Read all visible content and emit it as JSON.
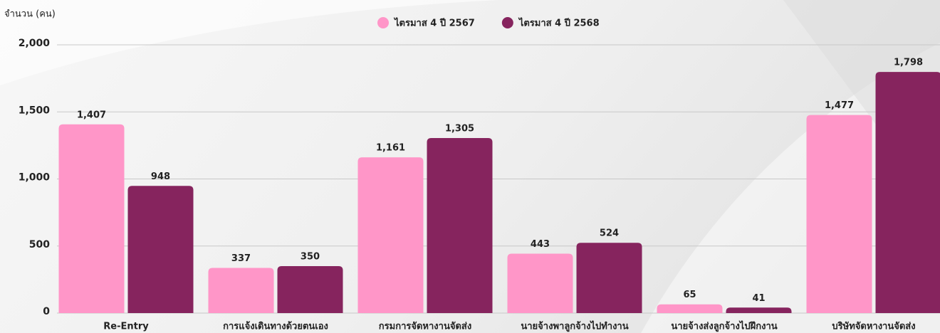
{
  "chart_data": {
    "type": "bar",
    "y_label": "จำนวน (คน)",
    "categories": [
      "Re-Entry",
      "การแจ้งเดินทางด้วยตนเอง",
      "กรมการจัดหางานจัดส่ง",
      "นายจ้างพาลูกจ้างไปทำงาน",
      "นายจ้างส่งลูกจ้างไปฝึกงาน",
      "บริษัทจัดหางานจัดส่ง"
    ],
    "series": [
      {
        "name": "ไตรมาส 4 ปี 2567",
        "color": "#ff96c8",
        "values": [
          1407,
          337,
          1161,
          443,
          65,
          1477
        ],
        "value_labels": [
          "1,407",
          "337",
          "1,161",
          "443",
          "65",
          "1,477"
        ]
      },
      {
        "name": "ไตรมาส 4 ปี 2568",
        "color": "#86245e",
        "values": [
          948,
          350,
          1305,
          524,
          41,
          1798
        ],
        "value_labels": [
          "948",
          "350",
          "1,305",
          "524",
          "41",
          "1,798"
        ]
      }
    ],
    "ylim": [
      0,
      2000
    ],
    "yticks": [
      {
        "value": 0,
        "label": "0"
      },
      {
        "value": 500,
        "label": "500"
      },
      {
        "value": 1000,
        "label": "1,000"
      },
      {
        "value": 1500,
        "label": "1,500"
      },
      {
        "value": 2000,
        "label": "2,000"
      }
    ],
    "grid": true,
    "legend": "top"
  }
}
